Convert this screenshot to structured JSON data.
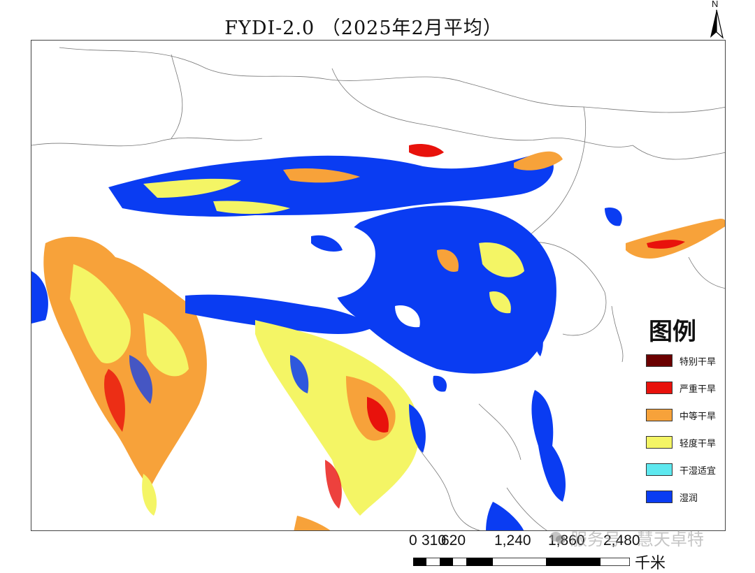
{
  "title": "FYDI-2.0 （2025年2月平均）",
  "north_arrow": {
    "label": "N",
    "icon": "north-arrow-icon"
  },
  "legend": {
    "title": "图例",
    "items": [
      {
        "label": "特别干旱",
        "color": "#6b0000"
      },
      {
        "label": "严重干旱",
        "color": "#e8120c"
      },
      {
        "label": "中等干旱",
        "color": "#f7a23a"
      },
      {
        "label": "轻度干旱",
        "color": "#f4f565"
      },
      {
        "label": "干湿适宜",
        "color": "#5ee8ef"
      },
      {
        "label": "湿润",
        "color": "#0a3cf2"
      }
    ]
  },
  "scale_bar": {
    "labels": [
      "0",
      "310",
      "620",
      "1,240",
      "1,860",
      "2,480"
    ],
    "unit": "千米"
  },
  "watermark": {
    "text": "服务号 · 慧天卓特",
    "icon": "wechat-icon"
  }
}
